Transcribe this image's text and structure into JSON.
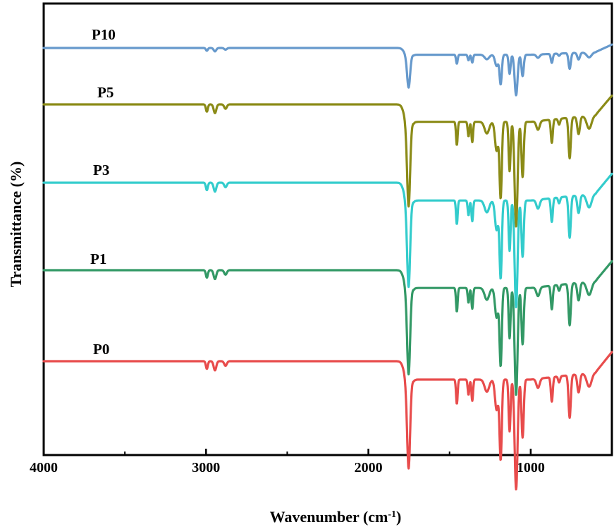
{
  "chart_data": {
    "type": "line",
    "xlabel": "Wavenumber (cm",
    "xlabel_sup": "-1",
    "xlabel_close": ")",
    "ylabel": "Transmittance (%)",
    "xlim": [
      4000,
      500
    ],
    "x_reversed": true,
    "xticks": [
      4000,
      3000,
      2000,
      1000
    ],
    "xtick_labels": [
      "4000",
      "3000",
      "2000",
      "1000"
    ],
    "y_ticks_shown": false,
    "grid": false,
    "series": [
      {
        "name": "P10",
        "color": "#6699cc",
        "depth": 0.38,
        "baseline": 68
      },
      {
        "name": "P5",
        "color": "#8b8b17",
        "depth": 0.98,
        "baseline": 148
      },
      {
        "name": "P3",
        "color": "#33cccc",
        "depth": 1.0,
        "baseline": 259
      },
      {
        "name": "P1",
        "color": "#339966",
        "depth": 1.0,
        "baseline": 383
      },
      {
        "name": "P0",
        "color": "#e84c4c",
        "depth": 1.03,
        "baseline": 512
      }
    ]
  }
}
